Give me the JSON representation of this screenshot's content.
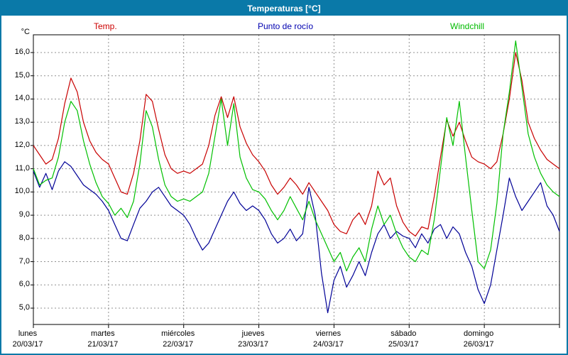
{
  "title": "Temperaturas [°C]",
  "window": {
    "border_color": "#0a79a8",
    "titlebar_color": "#0a79a8",
    "background": "#ffffff"
  },
  "legend": [
    {
      "label": "Temp.",
      "color": "#cc0000"
    },
    {
      "label": "Punto de rocío",
      "color": "#0000b0"
    },
    {
      "label": "Windchill",
      "color": "#00bb00"
    }
  ],
  "y_axis": {
    "unit": "°C",
    "min": 5,
    "max": 16,
    "tick_step": 1,
    "ticks": [
      "16,0",
      "15,0",
      "14,0",
      "13,0",
      "12,0",
      "11,0",
      "10,0",
      "9,0",
      "8,0",
      "7,0",
      "6,0",
      "5,0"
    ]
  },
  "x_axis": {
    "days": [
      {
        "name": "lunes",
        "date": "20/03/17"
      },
      {
        "name": "martes",
        "date": "21/03/17"
      },
      {
        "name": "miércoles",
        "date": "22/03/17"
      },
      {
        "name": "jueves",
        "date": "23/03/17"
      },
      {
        "name": "viernes",
        "date": "24/03/17"
      },
      {
        "name": "sábado",
        "date": "25/03/17"
      },
      {
        "name": "domingo",
        "date": "26/03/17"
      }
    ]
  },
  "chart_data": {
    "type": "line",
    "title": "Temperaturas [°C]",
    "xlabel": "",
    "ylabel": "°C",
    "ylim": [
      4.3,
      16.8
    ],
    "grid": true,
    "x_start": "lunes 20/03/17 00:00",
    "x_end": "domingo 26/03/17 24:00",
    "x_step_hours": 2,
    "categories": [
      "20/03/17",
      "21/03/17",
      "22/03/17",
      "23/03/17",
      "24/03/17",
      "25/03/17",
      "26/03/17"
    ],
    "series": [
      {
        "name": "Temp.",
        "color": "#c80000",
        "values": [
          12.0,
          11.6,
          11.2,
          11.4,
          12.3,
          13.8,
          14.9,
          14.3,
          13.0,
          12.2,
          11.7,
          11.4,
          11.2,
          10.6,
          10.0,
          9.9,
          10.8,
          12.2,
          14.2,
          13.9,
          12.7,
          11.6,
          11.0,
          10.8,
          10.9,
          10.8,
          11.0,
          11.2,
          12.0,
          13.3,
          14.1,
          13.2,
          14.1,
          12.8,
          12.1,
          11.6,
          11.3,
          10.9,
          10.3,
          9.9,
          10.2,
          10.6,
          10.3,
          9.9,
          10.4,
          10.0,
          9.6,
          9.2,
          8.6,
          8.3,
          8.2,
          8.8,
          9.1,
          8.6,
          9.4,
          10.9,
          10.3,
          10.6,
          9.4,
          8.7,
          8.3,
          8.1,
          8.5,
          8.4,
          9.8,
          11.5,
          13.1,
          12.4,
          13.0,
          12.2,
          11.5,
          11.3,
          11.2,
          11.0,
          11.3,
          12.5,
          14.0,
          16.0,
          14.8,
          13.0,
          12.3,
          11.8,
          11.4,
          11.2,
          11.0
        ]
      },
      {
        "name": "Punto de rocío",
        "color": "#000096",
        "values": [
          10.9,
          10.2,
          10.8,
          10.1,
          10.9,
          11.3,
          11.1,
          10.7,
          10.3,
          10.1,
          9.9,
          9.6,
          9.2,
          8.6,
          8.0,
          7.9,
          8.6,
          9.3,
          9.6,
          10.0,
          10.2,
          9.8,
          9.4,
          9.2,
          9.0,
          8.6,
          8.0,
          7.5,
          7.8,
          8.4,
          9.0,
          9.6,
          10.0,
          9.5,
          9.2,
          9.4,
          9.2,
          8.8,
          8.2,
          7.8,
          8.0,
          8.4,
          7.9,
          8.2,
          10.2,
          9.0,
          6.5,
          4.8,
          6.2,
          6.8,
          5.9,
          6.4,
          7.0,
          6.4,
          7.4,
          8.2,
          8.6,
          8.0,
          8.3,
          8.1,
          8.0,
          7.6,
          8.2,
          7.8,
          8.4,
          8.6,
          8.0,
          8.5,
          8.2,
          7.4,
          6.8,
          5.8,
          5.2,
          6.0,
          7.5,
          9.0,
          10.6,
          9.8,
          9.2,
          9.6,
          10.0,
          10.4,
          9.4,
          9.0,
          8.3
        ]
      },
      {
        "name": "Windchill",
        "color": "#00c000",
        "values": [
          11.0,
          10.3,
          10.5,
          10.6,
          11.5,
          13.0,
          13.9,
          13.5,
          12.2,
          11.2,
          10.4,
          9.8,
          9.5,
          9.0,
          9.3,
          8.9,
          9.6,
          11.2,
          13.5,
          12.8,
          11.4,
          10.3,
          9.8,
          9.6,
          9.7,
          9.6,
          9.8,
          10.0,
          10.8,
          12.4,
          14.0,
          12.0,
          13.8,
          11.5,
          10.6,
          10.1,
          10.0,
          9.7,
          9.2,
          8.8,
          9.2,
          9.8,
          9.3,
          8.8,
          9.6,
          8.8,
          8.2,
          7.6,
          7.0,
          7.4,
          6.6,
          7.2,
          7.6,
          7.0,
          8.4,
          9.4,
          8.6,
          9.0,
          8.2,
          7.6,
          7.2,
          7.0,
          7.5,
          7.3,
          8.8,
          11.0,
          13.2,
          12.0,
          13.9,
          11.5,
          9.2,
          7.0,
          6.7,
          7.5,
          9.5,
          12.5,
          14.3,
          16.5,
          14.5,
          12.5,
          11.5,
          10.8,
          10.3,
          10.0,
          9.8
        ]
      }
    ],
    "legend_position": "top"
  }
}
